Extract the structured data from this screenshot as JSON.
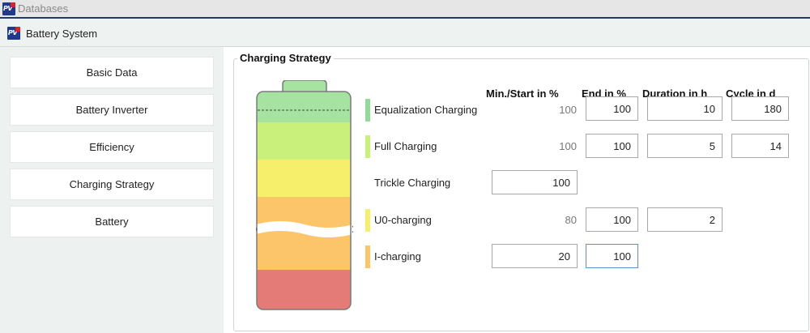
{
  "window": {
    "app_title": "Databases",
    "module_title": "Battery System"
  },
  "nav": {
    "items": [
      {
        "label": "Basic Data"
      },
      {
        "label": "Battery Inverter"
      },
      {
        "label": "Efficiency"
      },
      {
        "label": "Charging Strategy"
      },
      {
        "label": "Battery"
      }
    ]
  },
  "charging_strategy": {
    "title": "Charging Strategy",
    "columns": {
      "min_start": "Min./Start in %",
      "end": "End in %",
      "duration": "Duration in h",
      "cycle": "Cycle in d"
    },
    "rows": [
      {
        "label": "Equalization Charging",
        "color": "#92d99a",
        "min_start": "100",
        "end": "100",
        "duration": "10",
        "cycle": "180"
      },
      {
        "label": "Full Charging",
        "color": "#c8f07a",
        "min_start": "100",
        "end": "100",
        "duration": "5",
        "cycle": "14"
      },
      {
        "label": "Trickle Charging",
        "min_start": "100"
      },
      {
        "label": "U0-charging",
        "color": "#f6ef6b",
        "min_start": "80",
        "end": "100",
        "duration": "2"
      },
      {
        "label": "I-charging",
        "color": "#fdc56a",
        "min_start": "20",
        "end": "100"
      }
    ]
  },
  "battery_colors": {
    "cap": "#a6e3a0",
    "equalization": "#a6e3a0",
    "full": "#c8f07a",
    "u0": "#f6ef6b",
    "i": "#fdc56a",
    "deep": "#e57b77"
  }
}
